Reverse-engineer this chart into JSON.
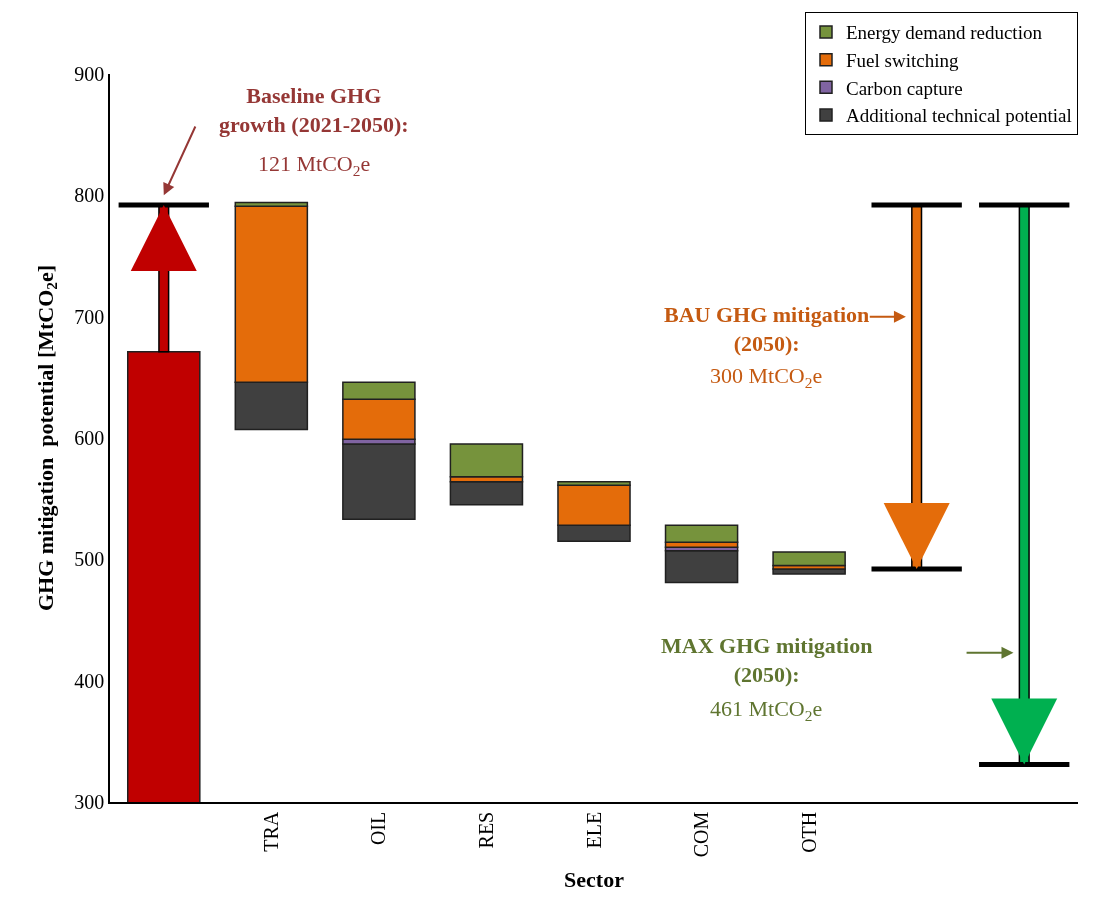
{
  "chart_data": {
    "type": "bar",
    "xlabel": "Sector",
    "ylabel": "GHG mitigation  potential [MtCO$_{2}$e]",
    "categories": [
      null,
      "TRA",
      "OIL",
      "RES",
      "ELE",
      "COM",
      "OTH",
      null,
      null
    ],
    "series": [
      {
        "color": "#c00000",
        "values": [
          671,
          null,
          null,
          null,
          null,
          null,
          null,
          null,
          null
        ]
      },
      {
        "name": "Additional technical potential",
        "color": "#404040",
        "values": [
          null,
          39,
          62,
          19,
          13,
          26,
          4,
          null,
          null
        ],
        "base": [
          null,
          607,
          533,
          545,
          515,
          481,
          488,
          null,
          null
        ]
      },
      {
        "name": "Carbon capture",
        "color": "#8064a2",
        "values": [
          null,
          null,
          4,
          null,
          null,
          3,
          null,
          null,
          null
        ],
        "base": [
          null,
          null,
          595,
          null,
          null,
          507,
          null,
          null,
          null
        ]
      },
      {
        "name": "Fuel switching",
        "color": "#e46c0a",
        "values": [
          null,
          145,
          33,
          4,
          33,
          4,
          3,
          null,
          null
        ],
        "base": [
          null,
          646,
          599,
          564,
          528,
          510,
          492,
          null,
          null
        ]
      },
      {
        "name": "Energy demand reduction",
        "color": "#76933c",
        "values": [
          null,
          3,
          14,
          27,
          3,
          14,
          11,
          null,
          null
        ],
        "base": [
          null,
          791,
          632,
          568,
          561,
          514,
          495,
          null,
          null
        ]
      },
      {
        "type": "bar",
        "values": [
          121,
          null,
          null,
          null,
          null,
          null,
          null,
          -300,
          -461
        ],
        "base": [
          671,
          null,
          null,
          null,
          null,
          null,
          null,
          792,
          792
        ],
        "colors": [
          "#c00000",
          null,
          null,
          null,
          null,
          null,
          null,
          "#e46c0a",
          "#00b050"
        ]
      }
    ],
    "ylim": [
      300,
      900
    ],
    "yticks": [
      300,
      400,
      500,
      600,
      700,
      800,
      900
    ],
    "grid": false,
    "legend": "top right",
    "annotations": [
      "Baseline GHG growth (2021-2050):",
      "121 MtCO$_{2}$e",
      "BAU GHG mitigation (2050):",
      "300 MtCO$_{2}$e",
      "MAX GHG mitigation (2050):",
      "461 MtCO$_{2}$e"
    ]
  }
}
